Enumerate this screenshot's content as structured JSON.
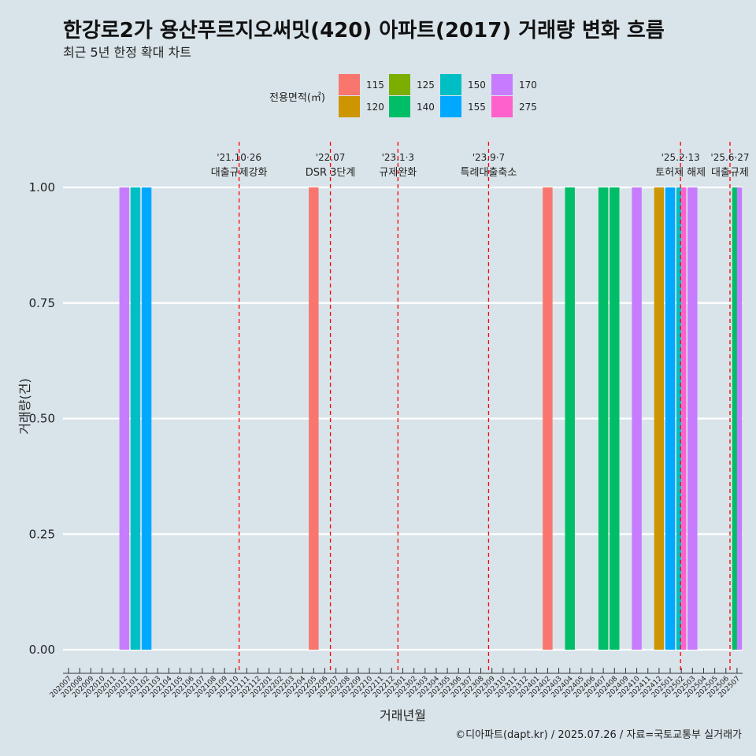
{
  "title": "한강로2가 용산푸르지오써밋(420) 아파트(2017) 거래량 변화 흐름",
  "subtitle": "최근 5년 한정 확대 차트",
  "caption": "©디아파트(dapt.kr) / 2025.07.26 / 자료=국토교통부 실거래가",
  "legend_title": "전용면적(㎡)",
  "colors": {
    "115": "#f8766d",
    "120": "#cd9600",
    "125": "#7cae00",
    "140": "#00be67",
    "150": "#00bfc4",
    "155": "#00a9ff",
    "170": "#c77cff",
    "275": "#ff61cc"
  },
  "chart_data": {
    "type": "bar",
    "xlabel": "거래년월",
    "ylabel": "거래량(건)",
    "ylim": [
      0,
      1
    ],
    "yticks": [
      "0.00",
      "0.25",
      "0.50",
      "0.75",
      "1.00"
    ],
    "categories": [
      "202007",
      "202008",
      "202009",
      "202010",
      "202011",
      "202012",
      "202101",
      "202102",
      "202103",
      "202104",
      "202105",
      "202106",
      "202107",
      "202108",
      "202109",
      "202110",
      "202111",
      "202112",
      "202201",
      "202202",
      "202203",
      "202204",
      "202205",
      "202206",
      "202207",
      "202208",
      "202209",
      "202210",
      "202211",
      "202212",
      "202301",
      "202302",
      "202303",
      "202304",
      "202305",
      "202306",
      "202307",
      "202308",
      "202309",
      "202310",
      "202311",
      "202312",
      "202401",
      "202402",
      "202403",
      "202404",
      "202405",
      "202406",
      "202407",
      "202408",
      "202409",
      "202410",
      "202411",
      "202412",
      "202501",
      "202502",
      "202503",
      "202504",
      "202505",
      "202506",
      "202507"
    ],
    "legend": [
      "115",
      "120",
      "125",
      "140",
      "150",
      "155",
      "170",
      "275"
    ],
    "bars": [
      {
        "month": "202012",
        "area": "170",
        "value": 1
      },
      {
        "month": "202101",
        "area": "150",
        "value": 1
      },
      {
        "month": "202102",
        "area": "155",
        "value": 1
      },
      {
        "month": "202205",
        "area": "115",
        "value": 1
      },
      {
        "month": "202402",
        "area": "115",
        "value": 1
      },
      {
        "month": "202404",
        "area": "140",
        "value": 1
      },
      {
        "month": "202407",
        "area": "140",
        "value": 1
      },
      {
        "month": "202408",
        "area": "140",
        "value": 1
      },
      {
        "month": "202410",
        "area": "170",
        "value": 1
      },
      {
        "month": "202412",
        "area": "120",
        "value": 1
      },
      {
        "month": "202501",
        "area": "155",
        "value": 1
      },
      {
        "month": "202502",
        "area": "150",
        "value": 1
      },
      {
        "month": "202502",
        "area": "275",
        "value": 1
      },
      {
        "month": "202503",
        "area": "170",
        "value": 1
      },
      {
        "month": "202507",
        "area": "140",
        "value": 1
      },
      {
        "month": "202507",
        "area": "170",
        "value": 1
      }
    ],
    "events": [
      {
        "date": "2021-10-26",
        "label": "'21.10·26",
        "desc": "대출규제강화"
      },
      {
        "date": "2022-07-01",
        "label": "'22.07",
        "desc": "DSR 3단계"
      },
      {
        "date": "2023-01-03",
        "label": "'23.1·3",
        "desc": "규제완화"
      },
      {
        "date": "2023-09-07",
        "label": "'23.9·7",
        "desc": "특례대출축소"
      },
      {
        "date": "2025-02-13",
        "label": "'25.2·13",
        "desc": "토허제 해제"
      },
      {
        "date": "2025-06-27",
        "label": "'25.6·27",
        "desc": "대출규제"
      }
    ]
  }
}
